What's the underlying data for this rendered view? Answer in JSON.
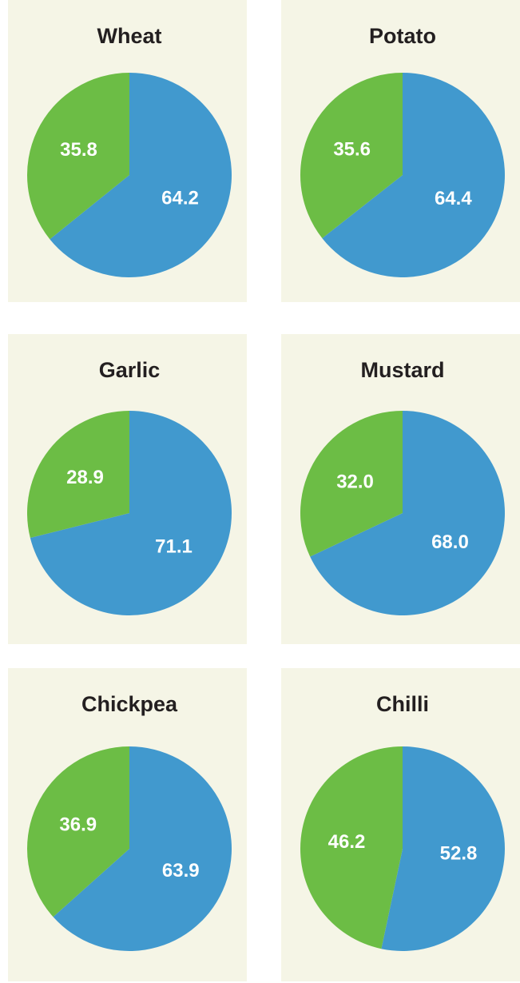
{
  "chart_data": [
    {
      "type": "pie",
      "title": "Wheat",
      "values": [
        64.2,
        35.8
      ],
      "colors": [
        "#4199ce",
        "#6cbd45"
      ]
    },
    {
      "type": "pie",
      "title": "Potato",
      "values": [
        64.4,
        35.6
      ],
      "colors": [
        "#4199ce",
        "#6cbd45"
      ]
    },
    {
      "type": "pie",
      "title": "Garlic",
      "values": [
        71.1,
        28.9
      ],
      "colors": [
        "#4199ce",
        "#6cbd45"
      ]
    },
    {
      "type": "pie",
      "title": "Mustard",
      "values": [
        68.0,
        32.0
      ],
      "value_labels": [
        "68.0",
        "32.0"
      ],
      "colors": [
        "#4199ce",
        "#6cbd45"
      ]
    },
    {
      "type": "pie",
      "title": "Chickpea",
      "values": [
        63.9,
        36.9
      ],
      "colors": [
        "#4199ce",
        "#6cbd45"
      ]
    },
    {
      "type": "pie",
      "title": "Chilli",
      "values": [
        52.8,
        46.2
      ],
      "colors": [
        "#4199ce",
        "#6cbd45"
      ]
    }
  ]
}
